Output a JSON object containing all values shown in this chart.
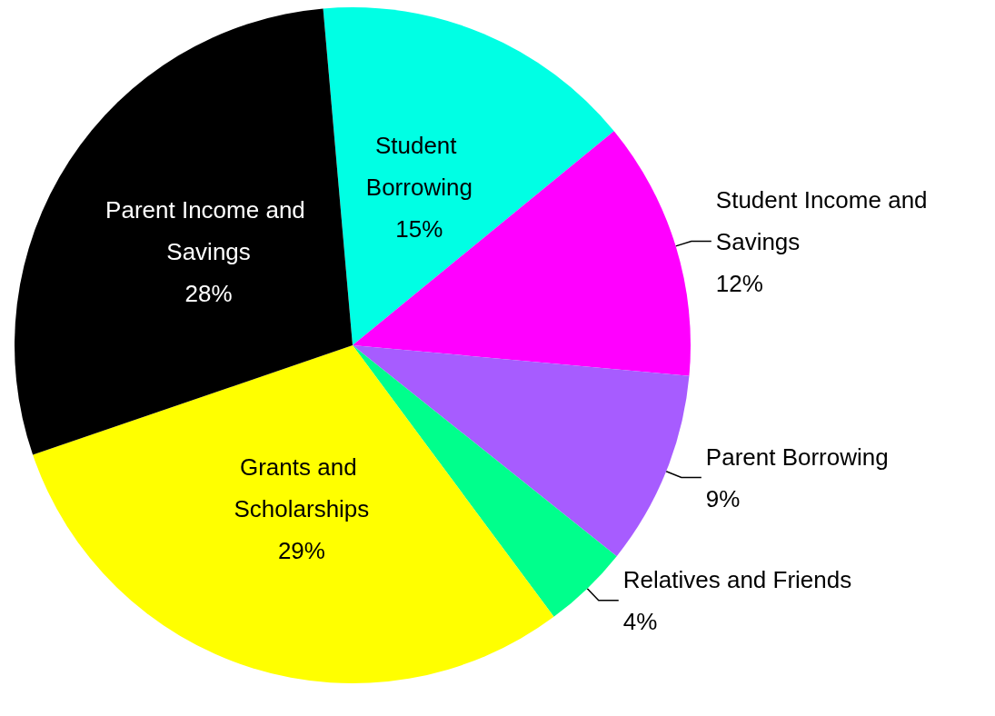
{
  "chart_data": {
    "type": "pie",
    "categories": [
      "Student Borrowing",
      "Student Income and Savings",
      "Parent Borrowing",
      "Relatives and Friends",
      "Grants and Scholarships",
      "Parent Income and Savings"
    ],
    "values": [
      15,
      12,
      9,
      4,
      29,
      28
    ],
    "value_labels": [
      "15%",
      "12%",
      "9%",
      "4%",
      "29%",
      "28%"
    ],
    "colors": [
      "#00ffe4",
      "#ff00ff",
      "#a75cff",
      "#00ff8c",
      "#ffff00",
      "#000000"
    ],
    "legend": false
  }
}
